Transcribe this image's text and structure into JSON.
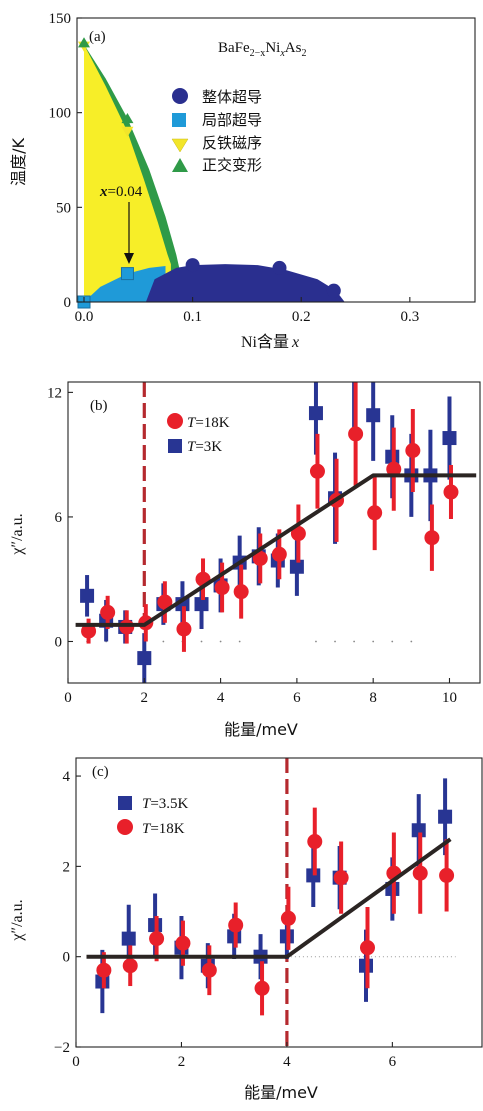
{
  "colors": {
    "yellow_afm": "#f7ee28",
    "green_ortho": "#2f9a48",
    "light_blue_filamentary": "#1f9ad8",
    "navy_bulk_sc": "#2a2f8f",
    "red_18K": "#e8202a",
    "blue_lowT": "#283593",
    "dashed_red": "#b5292e",
    "fit_line": "#2b2523"
  },
  "chart_data": [
    {
      "type": "scatter",
      "panel_label": "(a)",
      "title": "BaFe2−xNixAs2",
      "title_parts": {
        "base": "BaFe",
        "sub1": "2−x",
        "mid": "Ni",
        "sub2": "x",
        "tail": "As",
        "sub3": "2"
      },
      "xlabel": "Ni含量",
      "xlabel_var": "x",
      "ylabel": "温度/K",
      "xlim": [
        0,
        0.36
      ],
      "ylim": [
        0,
        150
      ],
      "xticks": [
        0.0,
        0.1,
        0.2,
        0.3
      ],
      "xtick_labels": [
        "0.0",
        "0.1",
        "0.2",
        "0.3"
      ],
      "yticks": [
        0,
        50,
        100,
        150
      ],
      "ytick_labels": [
        "0",
        "50",
        "100",
        "150"
      ],
      "annotation": {
        "var": "x",
        "text": "=0.04",
        "x": 0.04,
        "y": 15
      },
      "legend": [
        {
          "label": "整体超导",
          "marker": "circle",
          "color": "#2a2f8f"
        },
        {
          "label": "局部超导",
          "marker": "square",
          "color": "#1f9ad8"
        },
        {
          "label": "反铁磁序",
          "marker": "triangle-down",
          "color": "#f2e52a"
        },
        {
          "label": "正交变形",
          "marker": "triangle-up",
          "color": "#2f9a48"
        }
      ],
      "regions": {
        "orthorhombic_boundary": [
          [
            0,
            136
          ],
          [
            0.02,
            118
          ],
          [
            0.04,
            97
          ],
          [
            0.06,
            70
          ],
          [
            0.075,
            45
          ],
          [
            0.085,
            25
          ],
          [
            0.09,
            12
          ]
        ],
        "afm_boundary": [
          [
            0,
            136
          ],
          [
            0.02,
            114
          ],
          [
            0.04,
            90
          ],
          [
            0.055,
            65
          ],
          [
            0.068,
            42
          ],
          [
            0.077,
            25
          ],
          [
            0.08,
            20
          ]
        ],
        "filamentary_sc_dome": [
          [
            0,
            0
          ],
          [
            0.015,
            8
          ],
          [
            0.04,
            15
          ],
          [
            0.06,
            18
          ],
          [
            0.075,
            19
          ]
        ],
        "bulk_sc_dome": [
          [
            0.057,
            0
          ],
          [
            0.065,
            12
          ],
          [
            0.085,
            18
          ],
          [
            0.1,
            19.5
          ],
          [
            0.13,
            20
          ],
          [
            0.16,
            19.5
          ],
          [
            0.185,
            17
          ],
          [
            0.215,
            12
          ],
          [
            0.232,
            6
          ],
          [
            0.24,
            0
          ]
        ]
      },
      "series": [
        {
          "name": "整体超导",
          "marker": "circle",
          "points": [
            [
              0.1,
              19.5
            ],
            [
              0.18,
              18
            ],
            [
              0.23,
              6
            ]
          ]
        },
        {
          "name": "局部超导",
          "marker": "square",
          "points": [
            [
              0.0,
              0
            ],
            [
              0.04,
              15
            ]
          ]
        },
        {
          "name": "反铁磁序",
          "marker": "triangle-down",
          "points": [
            [
              0.0,
              135
            ],
            [
              0.04,
              90
            ]
          ]
        },
        {
          "name": "正交变形",
          "marker": "triangle-up",
          "points": [
            [
              0.0,
              137
            ],
            [
              0.04,
              97
            ]
          ]
        }
      ]
    },
    {
      "type": "scatter",
      "panel_label": "(b)",
      "xlabel": "能量/meV",
      "ylabel": "χ″/a.u.",
      "xlim": [
        0,
        10.8
      ],
      "ylim": [
        -2,
        12.5
      ],
      "xticks": [
        0,
        2,
        4,
        6,
        8,
        10
      ],
      "xtick_labels": [
        "0",
        "2",
        "4",
        "6",
        "8",
        "10"
      ],
      "yticks": [
        0,
        6,
        12
      ],
      "ytick_labels": [
        "0",
        "6",
        "12"
      ],
      "dashed_line_x": 2,
      "fit_line": [
        [
          0.2,
          0.8
        ],
        [
          2,
          0.8
        ],
        [
          8,
          8
        ],
        [
          10.7,
          8
        ]
      ],
      "legend": [
        {
          "var": "T",
          "text": "=18K",
          "marker": "circle",
          "color": "#e8202a"
        },
        {
          "var": "T",
          "text": "=3K",
          "marker": "square",
          "color": "#283593"
        }
      ],
      "series": [
        {
          "name": "T=18K",
          "marker": "circle",
          "points": [
            [
              0.5,
              0.5,
              0.6
            ],
            [
              1,
              1.4,
              0.8
            ],
            [
              1.5,
              0.7,
              0.8
            ],
            [
              2,
              0.9,
              0.9
            ],
            [
              2.5,
              1.9,
              1.0
            ],
            [
              3,
              0.6,
              1.1
            ],
            [
              3.5,
              3.0,
              1.0
            ],
            [
              4,
              2.6,
              1.2
            ],
            [
              4.5,
              2.4,
              1.3
            ],
            [
              5,
              4.0,
              1.2
            ],
            [
              5.5,
              4.2,
              1.2
            ],
            [
              6,
              5.2,
              1.4
            ],
            [
              6.5,
              8.2,
              1.8
            ],
            [
              7,
              6.8,
              2.0
            ],
            [
              7.5,
              10.0,
              2.5
            ],
            [
              8,
              6.2,
              1.8
            ],
            [
              8.5,
              8.3,
              2.0
            ],
            [
              9,
              9.2,
              2.0
            ],
            [
              9.5,
              5.0,
              1.6
            ],
            [
              10,
              7.2,
              1.3
            ]
          ]
        },
        {
          "name": "T=3K",
          "marker": "square",
          "points": [
            [
              0.5,
              2.2,
              1.0
            ],
            [
              1,
              1.0,
              1.0
            ],
            [
              1.5,
              0.7,
              0.8
            ],
            [
              2,
              -0.8,
              1.2
            ],
            [
              2.5,
              1.8,
              1.0
            ],
            [
              3,
              1.8,
              1.1
            ],
            [
              3.5,
              1.8,
              1.2
            ],
            [
              4,
              2.7,
              1.3
            ],
            [
              4.5,
              3.8,
              1.3
            ],
            [
              5,
              4.1,
              1.4
            ],
            [
              5.5,
              3.9,
              1.3
            ],
            [
              6,
              3.6,
              1.4
            ],
            [
              6.5,
              11.0,
              2.0
            ],
            [
              7,
              6.9,
              2.2
            ],
            [
              7.5,
              12.8,
              2.5
            ],
            [
              8,
              10.9,
              2.2
            ],
            [
              8.5,
              8.9,
              2.0
            ],
            [
              9,
              8.0,
              2.0
            ],
            [
              9.5,
              8.0,
              2.2
            ],
            [
              10,
              9.8,
              2.0
            ]
          ]
        }
      ],
      "baseline_dots": [
        0.5,
        1.0,
        1.5,
        2.5,
        3.0,
        3.5,
        4.0,
        4.5,
        6.5,
        7.0,
        7.5,
        8.0,
        8.5,
        9.0
      ]
    },
    {
      "type": "scatter",
      "panel_label": "(c)",
      "xlabel": "能量/meV",
      "ylabel": "χ″/a.u.",
      "xlim": [
        0,
        7.7
      ],
      "ylim": [
        -2,
        4.4
      ],
      "xticks": [
        0,
        2,
        4,
        6
      ],
      "xtick_labels": [
        "0",
        "2",
        "4",
        "6"
      ],
      "yticks": [
        -2,
        0,
        2,
        4
      ],
      "ytick_labels": [
        "−2",
        "0",
        "2",
        "4"
      ],
      "dashed_line_x": 4,
      "fit_line": [
        [
          0.2,
          0
        ],
        [
          4,
          0
        ],
        [
          7.1,
          2.6
        ]
      ],
      "legend": [
        {
          "var": "T",
          "text": "=3.5K",
          "marker": "square",
          "color": "#283593"
        },
        {
          "var": "T",
          "text": "=18K",
          "marker": "circle",
          "color": "#e8202a"
        }
      ],
      "series": [
        {
          "name": "T=3.5K",
          "marker": "square",
          "points": [
            [
              0.5,
              -0.55,
              0.7
            ],
            [
              1,
              0.4,
              0.75
            ],
            [
              1.5,
              0.7,
              0.7
            ],
            [
              2,
              0.2,
              0.7
            ],
            [
              2.5,
              -0.2,
              0.5
            ],
            [
              3,
              0.45,
              0.5
            ],
            [
              3.5,
              0.0,
              0.5
            ],
            [
              4,
              0.45,
              0.5
            ],
            [
              4.5,
              1.8,
              0.7
            ],
            [
              5,
              1.75,
              0.7
            ],
            [
              5.5,
              -0.2,
              0.8
            ],
            [
              6,
              1.5,
              0.7
            ],
            [
              6.5,
              2.8,
              0.8
            ],
            [
              7,
              3.1,
              0.85
            ]
          ]
        },
        {
          "name": "T=18K",
          "marker": "circle",
          "points": [
            [
              0.5,
              -0.3,
              0.4
            ],
            [
              1,
              -0.2,
              0.45
            ],
            [
              1.5,
              0.4,
              0.5
            ],
            [
              2,
              0.3,
              0.5
            ],
            [
              2.5,
              -0.3,
              0.55
            ],
            [
              3,
              0.7,
              0.5
            ],
            [
              3.5,
              -0.7,
              0.6
            ],
            [
              4,
              0.85,
              0.7
            ],
            [
              4.5,
              2.55,
              0.75
            ],
            [
              5,
              1.75,
              0.8
            ],
            [
              5.5,
              0.2,
              0.9
            ],
            [
              6,
              1.85,
              0.9
            ],
            [
              6.5,
              1.85,
              0.9
            ],
            [
              7,
              1.8,
              0.8
            ]
          ]
        }
      ]
    }
  ]
}
